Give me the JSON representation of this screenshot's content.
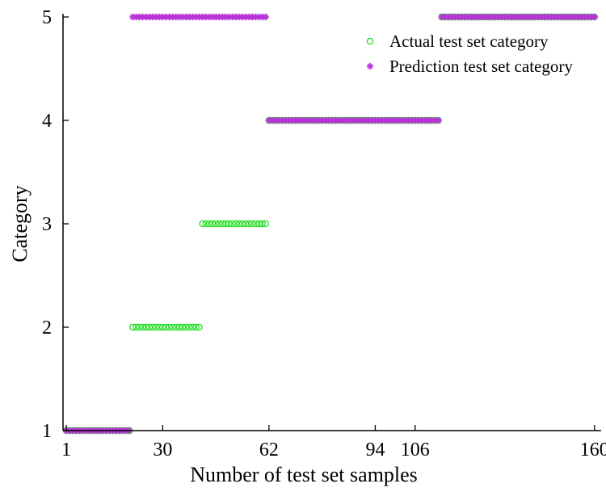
{
  "chart_data": {
    "type": "scatter",
    "xlabel": "Number of test set samples",
    "ylabel": "Category",
    "xlim": [
      0,
      162
    ],
    "ylim": [
      1,
      5
    ],
    "xticks": [
      1,
      30,
      62,
      94,
      106,
      160
    ],
    "yticks": [
      1,
      2,
      3,
      4,
      5
    ],
    "legend_position": "top-right",
    "grid": false,
    "series": [
      {
        "name": "Actual test set category",
        "marker": "circle",
        "color": "#22dd22",
        "segments": [
          {
            "x_start": 1,
            "x_end": 20,
            "y": 1
          },
          {
            "x_start": 21,
            "x_end": 41,
            "y": 2
          },
          {
            "x_start": 42,
            "x_end": 61,
            "y": 3
          },
          {
            "x_start": 62,
            "x_end": 113,
            "y": 4
          },
          {
            "x_start": 114,
            "x_end": 160,
            "y": 5
          }
        ]
      },
      {
        "name": "Prediction test set category",
        "marker": "asterisk",
        "color": "#b833d6",
        "segments": [
          {
            "x_start": 1,
            "x_end": 20,
            "y": 1
          },
          {
            "x_start": 21,
            "x_end": 61,
            "y": 5
          },
          {
            "x_start": 62,
            "x_end": 113,
            "y": 4
          },
          {
            "x_start": 114,
            "x_end": 160,
            "y": 5
          }
        ]
      }
    ]
  }
}
